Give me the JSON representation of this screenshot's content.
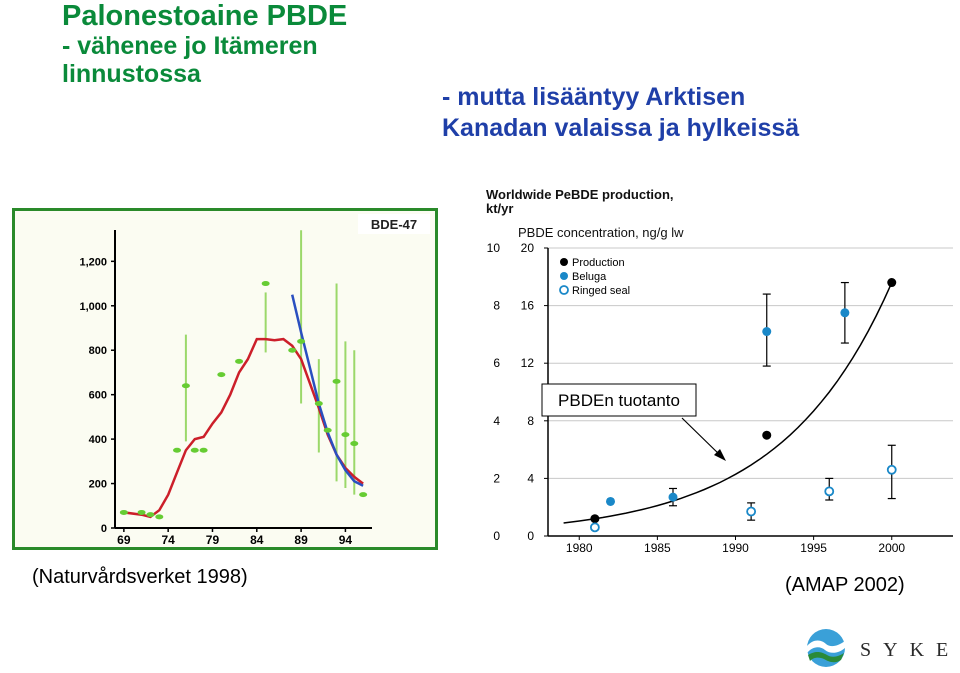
{
  "headline_left": {
    "line1": "Palonestoaine PBDE",
    "line2": "- vähenee jo Itämeren",
    "line3": "linnustossa"
  },
  "headline_right": {
    "line1": "- mutta lisääntyy Arktisen",
    "line2": "Kanadan valaissa ja hylkeissä"
  },
  "source_left": "(Naturvårdsverket 1998)",
  "source_right": "(AMAP 2002)",
  "logo": {
    "text": "SYKE"
  },
  "colors": {
    "green_title": "#0a8a3a",
    "blue_title": "#1f3fa8",
    "red_line": "#cc1f2a",
    "blue_line": "#2a4fc0",
    "green_points": "#66cc33",
    "beluga": "#1a88c8",
    "production": "#000000"
  },
  "chart_data": [
    {
      "type": "line",
      "title": "BDE-47",
      "x_ticks": [
        "69",
        "74",
        "79",
        "84",
        "89",
        "94"
      ],
      "xlim": [
        68,
        97
      ],
      "ylim": [
        0,
        1350
      ],
      "y_ticks": [
        0,
        200,
        400,
        600,
        800,
        1000,
        1200
      ],
      "y_tick_labels": [
        "0",
        "200",
        "400",
        "600",
        "800",
        "1,000",
        "1,200"
      ],
      "grid": false,
      "series": [
        {
          "style": "red-line",
          "points": [
            [
              69,
              70
            ],
            [
              71,
              60
            ],
            [
              72,
              50
            ],
            [
              73,
              80
            ],
            [
              74,
              150
            ],
            [
              75,
              250
            ],
            [
              76,
              350
            ],
            [
              77,
              400
            ],
            [
              78,
              410
            ],
            [
              79,
              470
            ],
            [
              80,
              520
            ],
            [
              81,
              600
            ],
            [
              82,
              700
            ],
            [
              83,
              760
            ],
            [
              84,
              850
            ],
            [
              85,
              850
            ],
            [
              86,
              845
            ],
            [
              87,
              850
            ],
            [
              88,
              820
            ],
            [
              89,
              760
            ],
            [
              90,
              650
            ],
            [
              91,
              540
            ],
            [
              92,
              420
            ],
            [
              93,
              330
            ],
            [
              94,
              270
            ],
            [
              95,
              230
            ],
            [
              96,
              200
            ]
          ]
        },
        {
          "style": "blue-line",
          "points": [
            [
              88,
              1050
            ],
            [
              89,
              880
            ],
            [
              90,
              720
            ],
            [
              91,
              560
            ],
            [
              92,
              430
            ],
            [
              93,
              330
            ],
            [
              94,
              260
            ],
            [
              95,
              210
            ],
            [
              96,
              190
            ]
          ]
        },
        {
          "style": "green-points",
          "points": [
            [
              69,
              70
            ],
            [
              71,
              70
            ],
            [
              72,
              60
            ],
            [
              73,
              50
            ],
            [
              75,
              350
            ],
            [
              76,
              640
            ],
            [
              77,
              350
            ],
            [
              78,
              350
            ],
            [
              80,
              690
            ],
            [
              82,
              750
            ],
            [
              85,
              1100
            ],
            [
              88,
              800
            ],
            [
              89,
              840
            ],
            [
              91,
              560
            ],
            [
              92,
              440
            ],
            [
              93,
              660
            ],
            [
              94,
              420
            ],
            [
              95,
              380
            ],
            [
              96,
              150
            ]
          ],
          "errors": [
            [
              76,
              390,
              870
            ],
            [
              85,
              790,
              1060
            ],
            [
              89,
              560,
              1340
            ],
            [
              91,
              340,
              760
            ],
            [
              93,
              210,
              1100
            ],
            [
              94,
              180,
              840
            ],
            [
              95,
              150,
              800
            ]
          ]
        }
      ]
    },
    {
      "type": "scatter",
      "title": "Worldwide PeBDE production, kt/yr",
      "subtitle": "PBDE concentration, ng/g lw",
      "xlim": [
        1978,
        2002
      ],
      "x_ticks": [
        1980,
        1985,
        1990,
        1995,
        2000
      ],
      "y_left_ticks": [
        0,
        2,
        4,
        6,
        8,
        10
      ],
      "y_right_ticks": [
        0,
        4,
        8,
        12,
        16,
        20
      ],
      "y_right_max": 20,
      "legend": [
        "Production",
        "Beluga",
        "Ringed seal"
      ],
      "legend_placement": "top-left",
      "annotation": "PBDEn tuotanto",
      "series": [
        {
          "name": "Production",
          "axis": "left",
          "points": [
            [
              1981,
              0.6
            ],
            [
              1992,
              3.5
            ],
            [
              2000,
              8.8
            ]
          ]
        },
        {
          "name": "Beluga",
          "axis": "right",
          "points": [
            [
              1982,
              2.4
            ],
            [
              1986,
              2.7
            ],
            [
              1992,
              14.2
            ],
            [
              1997,
              15.5
            ]
          ],
          "errors": [
            [
              1986,
              2.1,
              3.3
            ],
            [
              1992,
              11.8,
              16.8
            ],
            [
              1997,
              13.4,
              17.6
            ]
          ]
        },
        {
          "name": "Ringed seal",
          "axis": "right",
          "points": [
            [
              1981,
              0.6
            ],
            [
              1991,
              1.7
            ],
            [
              1996,
              3.1
            ],
            [
              2000,
              4.6
            ]
          ],
          "errors": [
            [
              1991,
              1.1,
              2.3
            ],
            [
              1996,
              2.5,
              4.0
            ],
            [
              2000,
              2.6,
              6.3
            ]
          ]
        }
      ],
      "trend_curve": "exponential"
    }
  ]
}
